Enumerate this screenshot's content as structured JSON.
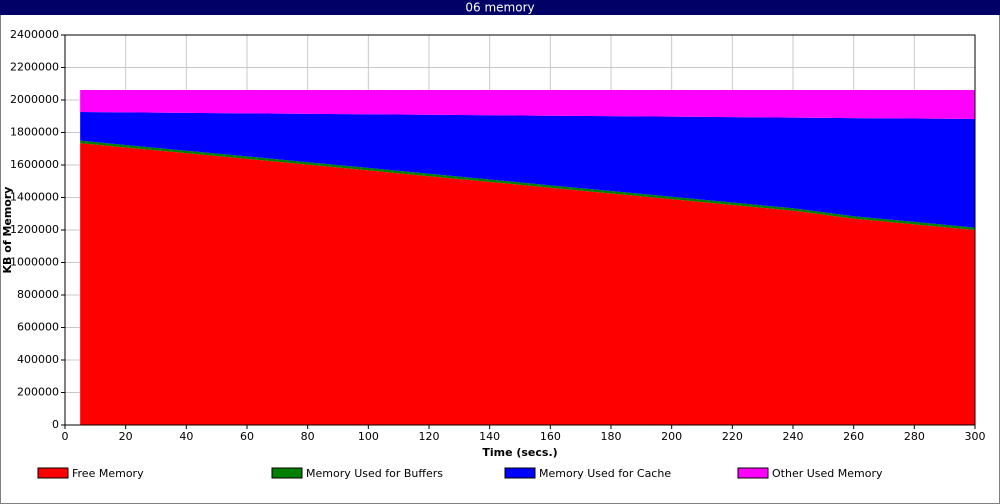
{
  "chart_data": {
    "type": "stacked-area",
    "title": "06 memory",
    "x_label": "Time (secs.)",
    "y_label": "KB of Memory",
    "x": [
      5,
      20,
      40,
      60,
      80,
      100,
      120,
      140,
      160,
      180,
      200,
      220,
      240,
      260,
      280,
      300
    ],
    "series": [
      {
        "name": "Free Memory",
        "color": "#ff0000",
        "values": [
          1735000,
          1708000,
          1673000,
          1638000,
          1602000,
          1567000,
          1531000,
          1496000,
          1460000,
          1425000,
          1390000,
          1354000,
          1319000,
          1270000,
          1235000,
          1200000
        ]
      },
      {
        "name": "Memory Used for Buffers",
        "color": "#008000",
        "values": [
          15000,
          15000,
          15000,
          15000,
          15000,
          15000,
          15000,
          15000,
          15000,
          15000,
          15000,
          15000,
          15000,
          15000,
          15000,
          15000
        ]
      },
      {
        "name": "Memory Used for Cache",
        "color": "#0000ff",
        "values": [
          176000,
          200800,
          232900,
          265000,
          298000,
          330100,
          363200,
          395300,
          428400,
          460500,
          492500,
          525600,
          557700,
          603800,
          635900,
          668000
        ]
      },
      {
        "name": "Other Used Memory",
        "color": "#ff00ff",
        "values": [
          135500,
          137700,
          140600,
          143500,
          146500,
          149400,
          152300,
          155200,
          158100,
          161000,
          164000,
          166900,
          169800,
          172700,
          175600,
          178500
        ]
      }
    ],
    "xlim": [
      0,
      300
    ],
    "xticks": [
      0,
      20,
      40,
      60,
      80,
      100,
      120,
      140,
      160,
      180,
      200,
      220,
      240,
      260,
      280,
      300
    ],
    "ylim": [
      0,
      2400000
    ],
    "yticks": [
      0,
      200000,
      400000,
      600000,
      800000,
      1000000,
      1200000,
      1400000,
      1600000,
      1800000,
      2000000,
      2200000,
      2400000
    ],
    "grid": true
  }
}
